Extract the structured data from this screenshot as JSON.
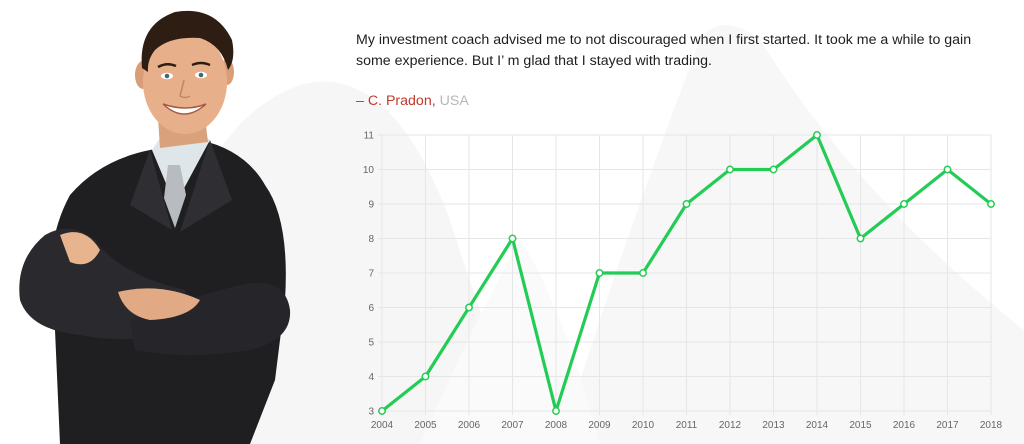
{
  "testimonial": {
    "quote": "My investment coach advised me to not discouraged when I first started. It took me a while to gain some experience. But I’ m glad that I stayed with trading.",
    "author_name": "– C. Pradon",
    "author_separator": ", ",
    "author_country": "USA"
  },
  "colors": {
    "accent_red": "#c0392b",
    "muted_gray": "#b7b7b7",
    "line_green": "#22cc55",
    "grid": "#e6e6e6"
  },
  "chart_data": {
    "type": "line",
    "x": [
      "2004",
      "2005",
      "2006",
      "2007",
      "2008",
      "2009",
      "2010",
      "2011",
      "2012",
      "2013",
      "2014",
      "2015",
      "2016",
      "2017",
      "2018"
    ],
    "series": [
      {
        "values": [
          3,
          4,
          6,
          8,
          3,
          7,
          7,
          9,
          10,
          10,
          11,
          8,
          9,
          10,
          9
        ]
      }
    ],
    "y_ticks": [
      3,
      4,
      5,
      6,
      7,
      8,
      9,
      10,
      11
    ],
    "ylim": [
      3,
      11
    ],
    "title": "",
    "xlabel": "",
    "ylabel": "",
    "grid": true,
    "legend": "none"
  }
}
